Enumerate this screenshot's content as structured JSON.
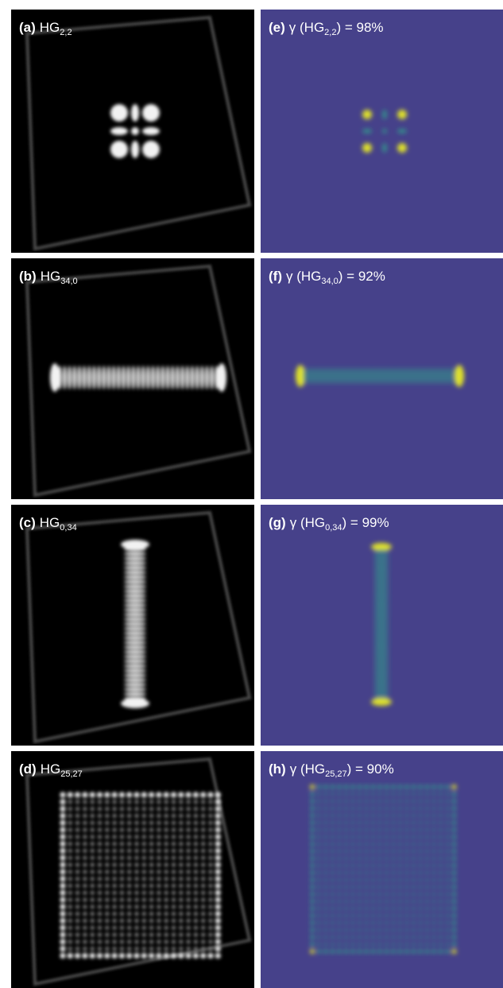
{
  "panels": [
    {
      "label": "(a)",
      "mode": "HG",
      "sub": "2,2"
    },
    {
      "label": "(b)",
      "mode": "HG",
      "sub": "34,0"
    },
    {
      "label": "(c)",
      "mode": "HG",
      "sub": "0,34"
    },
    {
      "label": "(d)",
      "mode": "HG",
      "sub": "25,27"
    }
  ],
  "fits": [
    {
      "label": "(e)",
      "prefix": "γ (HG",
      "sub": "2,2",
      "suffix": ") = 98%"
    },
    {
      "label": "(f)",
      "prefix": "γ (HG",
      "sub": "34,0",
      "suffix": ") = 92%"
    },
    {
      "label": "(g)",
      "prefix": "γ (HG",
      "sub": "0,34",
      "suffix": ") = 99%"
    },
    {
      "label": "(h)",
      "prefix": "γ (HG",
      "sub": "25,27",
      "suffix": ") = 90%"
    }
  ]
}
